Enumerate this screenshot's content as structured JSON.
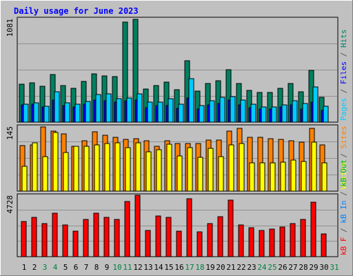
{
  "chart_data": {
    "type": "bar",
    "title": "Daily usage for June 2023",
    "days": [
      "1",
      "2",
      "3",
      "4",
      "5",
      "6",
      "7",
      "8",
      "9",
      "10",
      "11",
      "12",
      "13",
      "14",
      "15",
      "16",
      "17",
      "18",
      "19",
      "20",
      "21",
      "22",
      "23",
      "24",
      "25",
      "26",
      "27",
      "28",
      "29",
      "30",
      "31"
    ],
    "weekend_days": [
      "3",
      "4",
      "10",
      "11",
      "17",
      "18",
      "24",
      "25",
      "31"
    ],
    "panels": [
      {
        "name": "hits",
        "ymax_label": "1081",
        "ymax": 1081,
        "side_label": [
          {
            "text": "Pages",
            "color": "#00ccff"
          },
          {
            "text": " / ",
            "color": "#555555"
          },
          {
            "text": "Files",
            "color": "#0000ff"
          },
          {
            "text": " / ",
            "color": "#555555"
          },
          {
            "text": "Hits",
            "color": "#008060"
          }
        ],
        "series": [
          {
            "name": "Hits",
            "color": "#008060",
            "values": [
              398,
              410,
              372,
              500,
              384,
              354,
              422,
              504,
              484,
              474,
              1048,
              1074,
              344,
              384,
              418,
              338,
              640,
              324,
              400,
              432,
              550,
              402,
              330,
              310,
              310,
              356,
              400,
              314,
              538,
              260
            ]
          },
          {
            "name": "Files",
            "color": "#0000ff",
            "values": [
              180,
              190,
              160,
              230,
              170,
              160,
              185,
              230,
              220,
              210,
              220,
              230,
              150,
              170,
              175,
              145,
              250,
              140,
              180,
              195,
              230,
              180,
              150,
              140,
              140,
              160,
              180,
              140,
              210,
              120
            ]
          },
          {
            "name": "Pages",
            "color": "#00ccff",
            "values": [
              190,
              202,
              166,
              314,
              202,
              186,
              216,
              290,
              292,
              246,
              254,
              294,
              212,
              212,
              242,
              186,
              452,
              176,
              220,
              256,
              270,
              228,
              186,
              162,
              162,
              178,
              226,
              196,
              368,
              168
            ]
          }
        ]
      },
      {
        "name": "visits",
        "ymax_label": "145",
        "ymax": 145,
        "side_label": [
          {
            "text": "Visits",
            "color": "#ffff00"
          },
          {
            "text": " / ",
            "color": "#555555"
          },
          {
            "text": "Sites",
            "color": "#ff8000"
          }
        ],
        "series": [
          {
            "name": "Sites",
            "color": "#ff8000",
            "values": [
              102,
              104,
              143,
              134,
              128,
              101,
              113,
              133,
              125,
              121,
              115,
              118,
              112,
              101,
              113,
              106,
              107,
              107,
              114,
              114,
              134,
              141,
              121,
              121,
              118,
              116,
              112,
              110,
              141,
              104
            ]
          },
          {
            "name": "Visits",
            "color": "#ffff00",
            "values": [
              56,
              108,
              77,
              131,
              86,
              101,
              100,
              103,
              107,
              108,
              97,
              108,
              88,
              93,
              105,
              78,
              97,
              76,
              95,
              77,
              103,
              107,
              64,
              64,
              64,
              65,
              70,
              66,
              110,
              63
            ]
          }
        ]
      },
      {
        "name": "kbytes",
        "ymax_label": "4728",
        "ymax": 4728,
        "side_label": [
          {
            "text": "kB F",
            "color": "#ff0000"
          },
          {
            "text": " / ",
            "color": "#555555"
          },
          {
            "text": "kB In",
            "color": "#0080ff"
          },
          {
            "text": " / ",
            "color": "#555555"
          },
          {
            "text": "kB Out",
            "color": "#00c000"
          }
        ],
        "series": [
          {
            "name": "kB F",
            "color": "#ff0000",
            "values": [
              2720,
              3010,
              2540,
              3360,
              2460,
              1940,
              2850,
              3350,
              3040,
              2880,
              4260,
              4720,
              2010,
              3130,
              3040,
              1970,
              4450,
              1920,
              2540,
              3090,
              4340,
              2460,
              2240,
              2040,
              2100,
              2270,
              2560,
              2880,
              4220,
              1770
            ]
          }
        ]
      }
    ]
  }
}
